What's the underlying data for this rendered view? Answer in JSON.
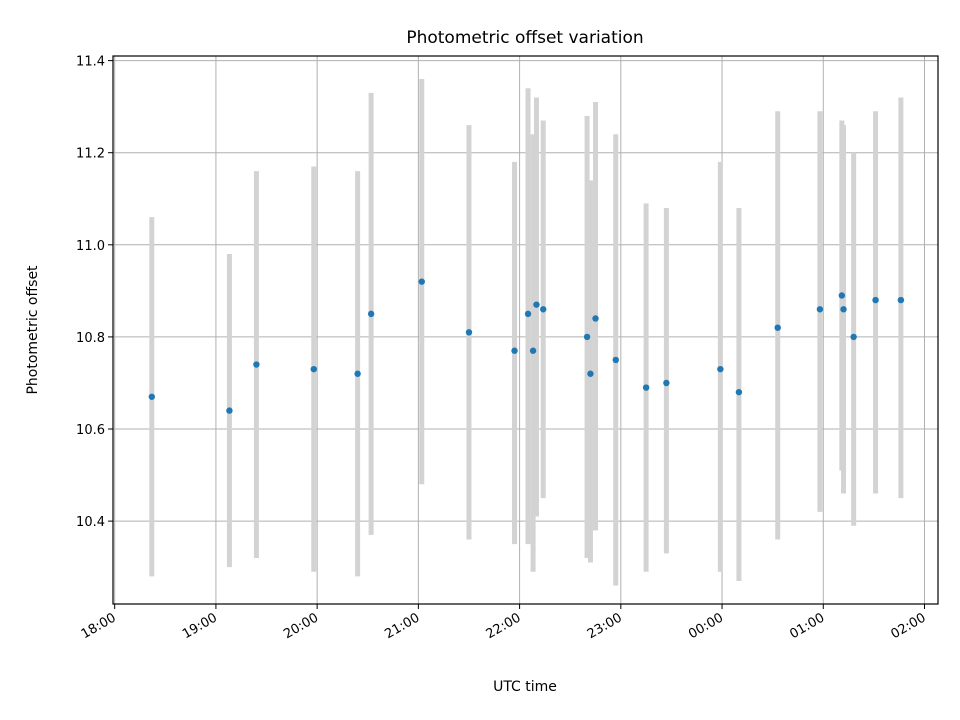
{
  "chart_data": {
    "type": "scatter",
    "title": "Photometric offset variation",
    "xlabel": "UTC time",
    "ylabel": "Photometric offset",
    "x_tick_labels": [
      "18:00",
      "19:00",
      "20:00",
      "21:00",
      "22:00",
      "23:00",
      "00:00",
      "01:00",
      "02:00"
    ],
    "y_tick_labels": [
      "10.4",
      "10.6",
      "10.8",
      "11.0",
      "11.2",
      "11.4"
    ],
    "y_ticks": [
      10.4,
      10.6,
      10.8,
      11.0,
      11.2,
      11.4
    ],
    "xlim": [
      "17:59",
      "02:08"
    ],
    "ylim": [
      10.22,
      11.41
    ],
    "grid": true,
    "marker_color": "#1f77b4",
    "errorbar_color": "#d3d3d3",
    "series": [
      {
        "points": [
          {
            "x": "18:22",
            "y": 10.67,
            "ylow": 10.28,
            "yhigh": 11.06
          },
          {
            "x": "19:08",
            "y": 10.64,
            "ylow": 10.3,
            "yhigh": 10.98
          },
          {
            "x": "19:24",
            "y": 10.74,
            "ylow": 10.32,
            "yhigh": 11.16
          },
          {
            "x": "19:58",
            "y": 10.73,
            "ylow": 10.29,
            "yhigh": 11.17
          },
          {
            "x": "20:24",
            "y": 10.72,
            "ylow": 10.28,
            "yhigh": 11.16
          },
          {
            "x": "20:32",
            "y": 10.85,
            "ylow": 10.37,
            "yhigh": 11.33
          },
          {
            "x": "21:02",
            "y": 10.92,
            "ylow": 10.48,
            "yhigh": 11.36
          },
          {
            "x": "21:30",
            "y": 10.81,
            "ylow": 10.36,
            "yhigh": 11.26
          },
          {
            "x": "21:57",
            "y": 10.77,
            "ylow": 10.35,
            "yhigh": 11.18
          },
          {
            "x": "22:05",
            "y": 10.85,
            "ylow": 10.35,
            "yhigh": 11.34
          },
          {
            "x": "22:08",
            "y": 10.77,
            "ylow": 10.29,
            "yhigh": 11.24
          },
          {
            "x": "22:10",
            "y": 10.87,
            "ylow": 10.41,
            "yhigh": 11.32
          },
          {
            "x": "22:14",
            "y": 10.86,
            "ylow": 10.45,
            "yhigh": 11.27
          },
          {
            "x": "22:40",
            "y": 10.8,
            "ylow": 10.32,
            "yhigh": 11.28
          },
          {
            "x": "22:42",
            "y": 10.72,
            "ylow": 10.31,
            "yhigh": 11.14
          },
          {
            "x": "22:45",
            "y": 10.84,
            "ylow": 10.38,
            "yhigh": 11.31
          },
          {
            "x": "22:57",
            "y": 10.75,
            "ylow": 10.26,
            "yhigh": 11.24
          },
          {
            "x": "23:15",
            "y": 10.69,
            "ylow": 10.29,
            "yhigh": 11.09
          },
          {
            "x": "23:27",
            "y": 10.7,
            "ylow": 10.33,
            "yhigh": 11.08
          },
          {
            "x": "23:59",
            "y": 10.73,
            "ylow": 10.29,
            "yhigh": 11.18
          },
          {
            "x": "00:10",
            "y": 10.68,
            "ylow": 10.27,
            "yhigh": 11.08
          },
          {
            "x": "00:33",
            "y": 10.82,
            "ylow": 10.36,
            "yhigh": 11.29
          },
          {
            "x": "00:58",
            "y": 10.86,
            "ylow": 10.42,
            "yhigh": 11.29
          },
          {
            "x": "01:11",
            "y": 10.89,
            "ylow": 10.51,
            "yhigh": 11.27
          },
          {
            "x": "01:12",
            "y": 10.86,
            "ylow": 10.46,
            "yhigh": 11.26
          },
          {
            "x": "01:18",
            "y": 10.8,
            "ylow": 10.39,
            "yhigh": 11.2
          },
          {
            "x": "01:31",
            "y": 10.88,
            "ylow": 10.46,
            "yhigh": 11.29
          },
          {
            "x": "01:46",
            "y": 10.88,
            "ylow": 10.45,
            "yhigh": 11.32
          }
        ]
      }
    ]
  }
}
